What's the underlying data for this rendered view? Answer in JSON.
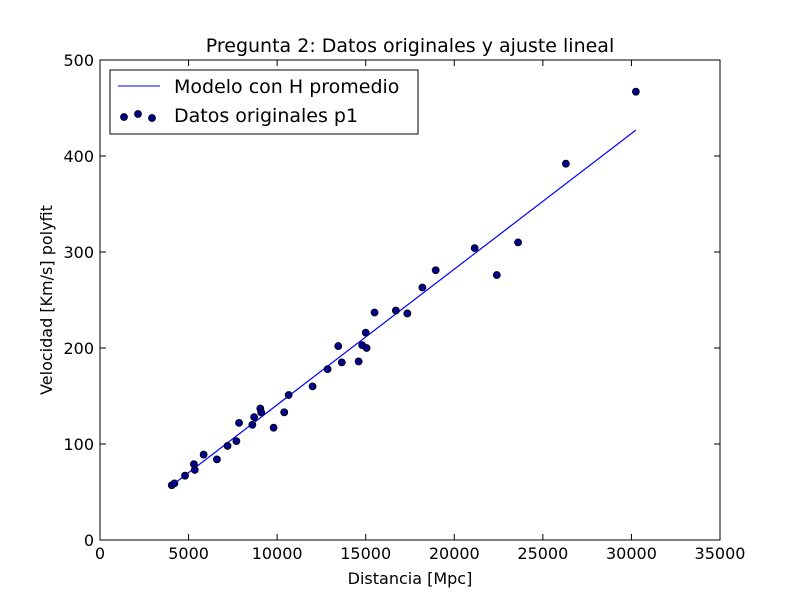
{
  "chart_data": {
    "type": "scatter",
    "title": "Pregunta 2: Datos originales y ajuste lineal",
    "xlabel": "Distancia [Mpc]",
    "ylabel": "Velocidad [Km/s] polyfit",
    "xlim": [
      0,
      35000
    ],
    "ylim": [
      0,
      500
    ],
    "xticks": [
      0,
      5000,
      10000,
      15000,
      20000,
      25000,
      30000,
      35000
    ],
    "yticks": [
      0,
      100,
      200,
      300,
      400,
      500
    ],
    "grid": false,
    "legend_position": "top-left",
    "series": [
      {
        "name": "Modelo con H promedio",
        "kind": "line",
        "color": "#0000ff",
        "x": [
          4000,
          30250
        ],
        "y": [
          56,
          427
        ]
      },
      {
        "name": "Datos originales p1",
        "kind": "scatter",
        "color": "#00008b",
        "x": [
          4050,
          4200,
          4800,
          5300,
          5350,
          5850,
          6600,
          7200,
          7700,
          7850,
          8600,
          8700,
          9050,
          9100,
          9800,
          10400,
          10650,
          12000,
          12850,
          13450,
          13650,
          14600,
          14800,
          15000,
          15050,
          15500,
          16700,
          17350,
          18200,
          18950,
          21150,
          22400,
          23600,
          26300,
          30250
        ],
        "y": [
          57,
          59,
          67,
          79,
          73,
          89,
          84,
          98,
          103,
          122,
          120,
          128,
          137,
          133,
          117,
          133,
          151,
          160,
          178,
          202,
          185,
          186,
          203,
          216,
          200,
          237,
          239,
          236,
          263,
          281,
          304,
          276,
          310,
          392,
          467
        ]
      }
    ]
  }
}
